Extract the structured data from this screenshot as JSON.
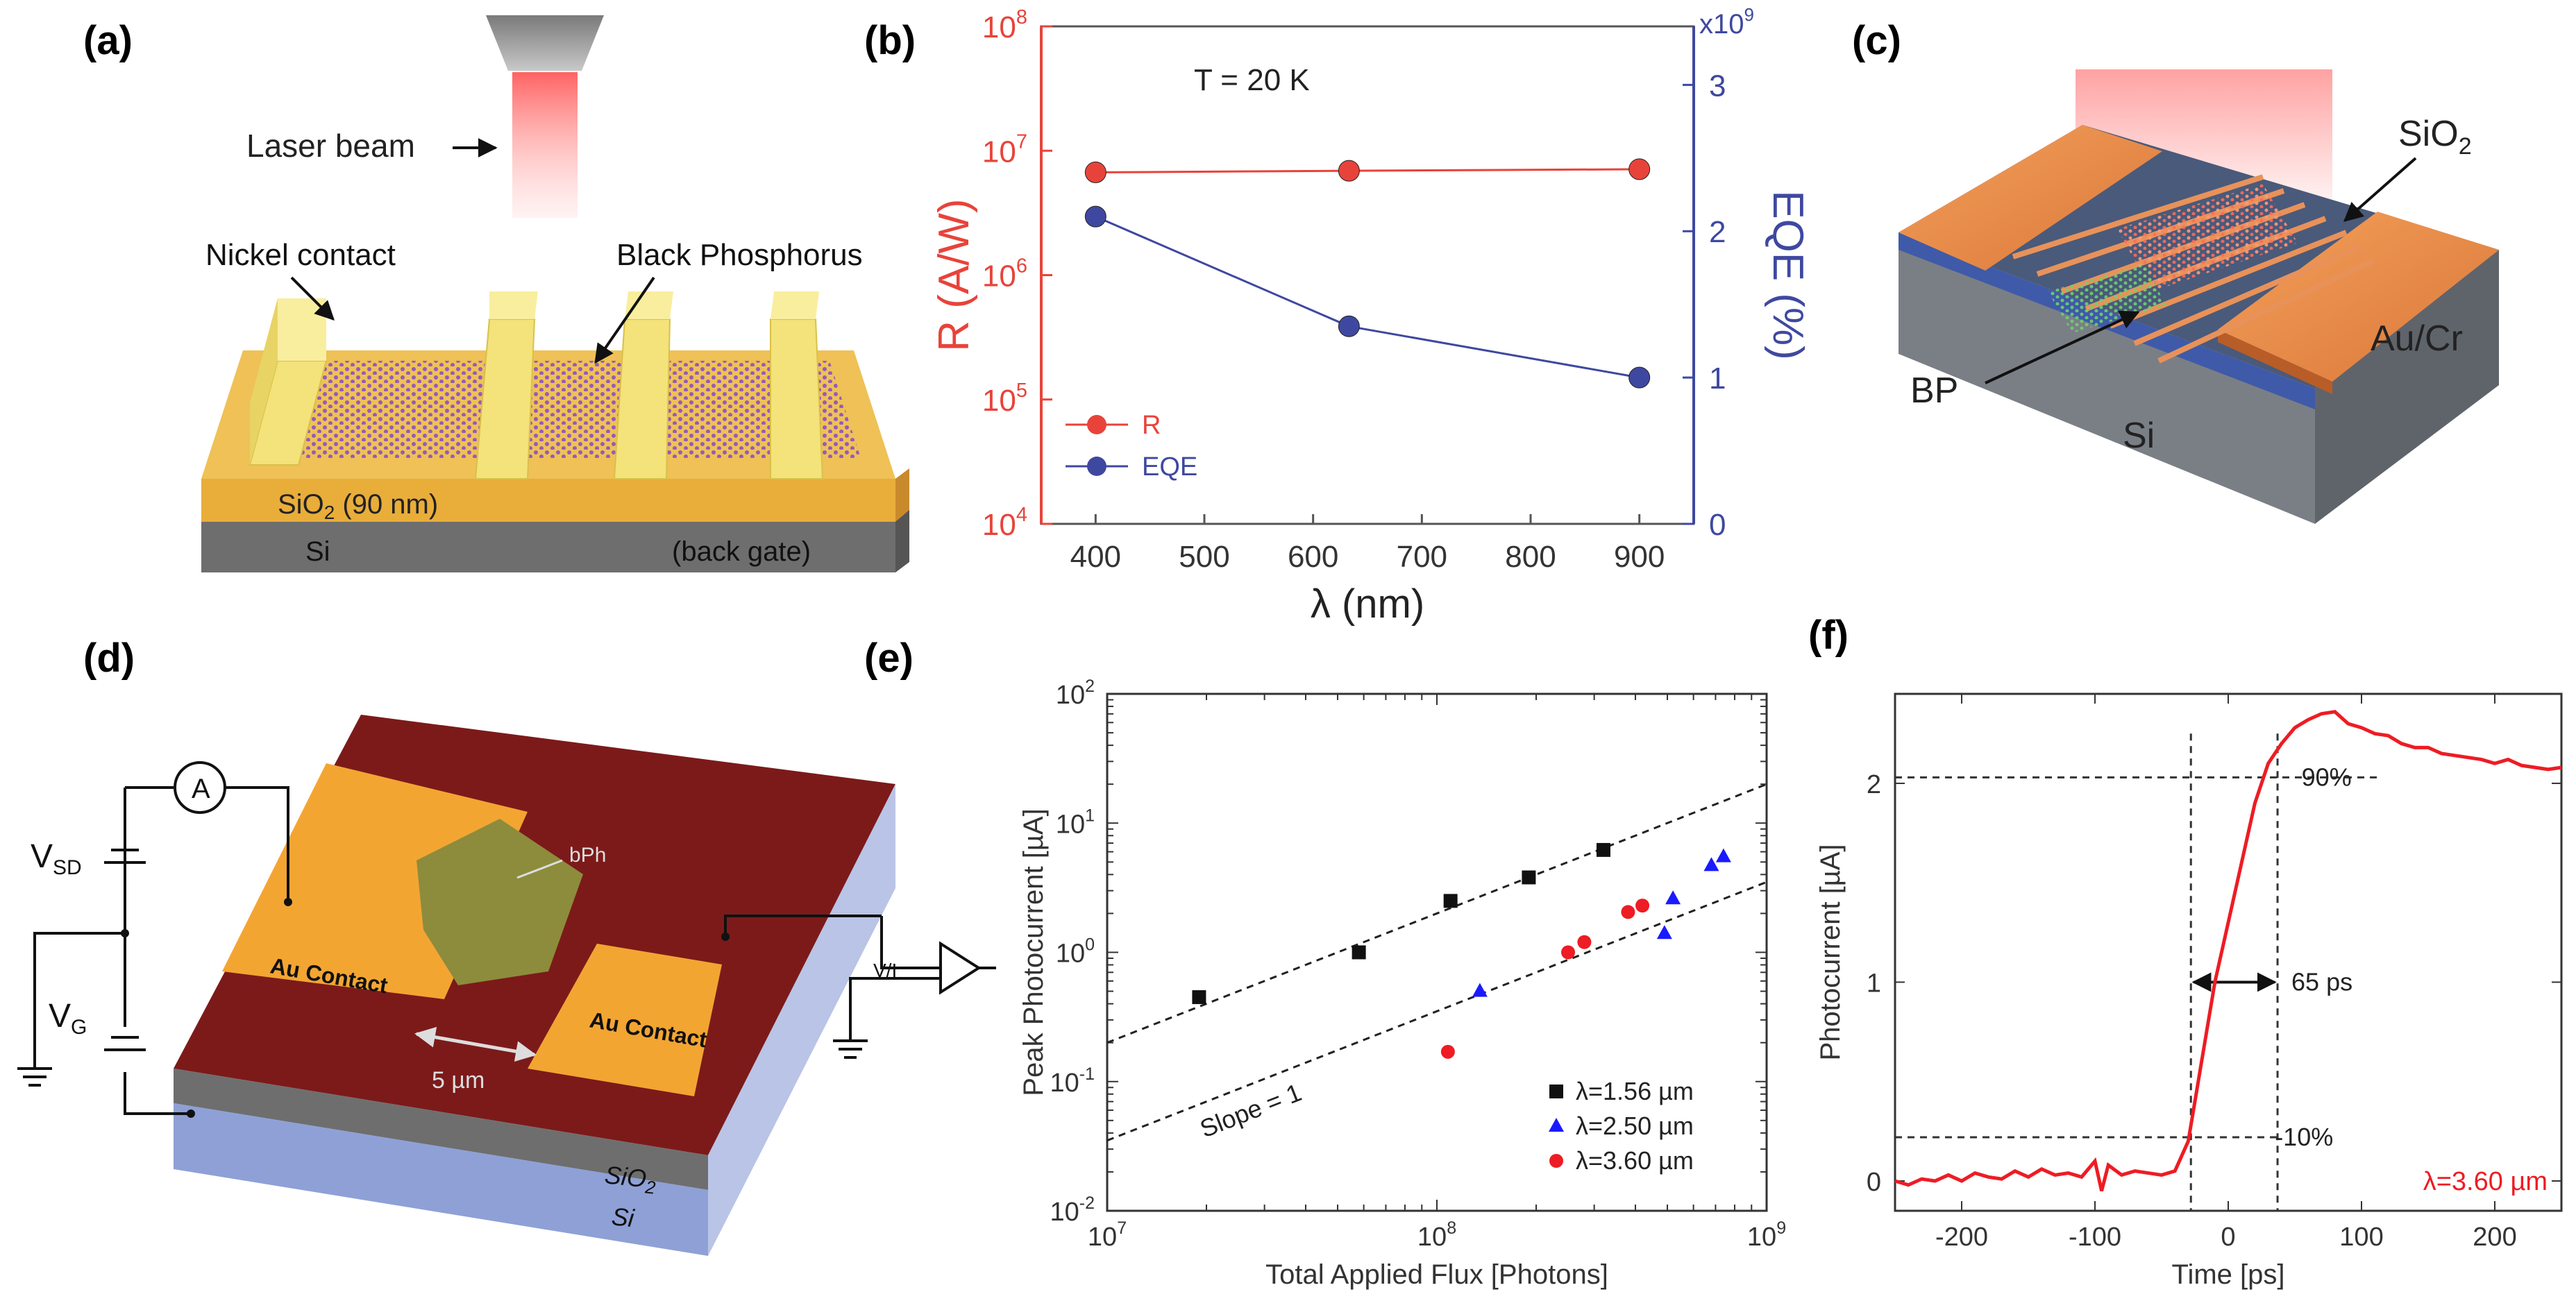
{
  "panels": {
    "a": {
      "label": "(a)",
      "laser": "Laser beam",
      "nickel": "Nickel contact",
      "bp": "Black Phosphorus",
      "sio2": "SiO",
      "sio2_sub": "2",
      "sio2_thick": " (90 nm)",
      "si": "Si",
      "backgate": "(back gate)"
    },
    "c": {
      "label": "(c)",
      "sio2": "SiO",
      "sio2_sub": "2",
      "aucr": "Au/Cr",
      "bp": "BP",
      "si": "Si"
    },
    "d": {
      "label": "(d)",
      "ammeter": "A",
      "vsd": "V",
      "vsd_sub": "SD",
      "vg": "V",
      "vg_sub": "G",
      "bph": "bPh",
      "contact_left": "Au Contact",
      "contact_right": "Au Contact",
      "scale": "5 µm",
      "amp": "V/I",
      "sio2": "SiO",
      "sio2_sub": "2",
      "si": "Si"
    }
  },
  "chart_data": [
    {
      "panel_label": "(b)",
      "type": "line",
      "annotation": "T = 20 K",
      "xlabel": "λ (nm)",
      "ylabel_left": "R (A/W)",
      "ylabel_right": "EQE (%)",
      "right_multiplier": "x10",
      "right_multiplier_exp": "9",
      "xlim": [
        350,
        950
      ],
      "xticks": [
        400,
        500,
        600,
        700,
        800,
        900
      ],
      "ylim_left": [
        10000,
        100000000
      ],
      "yticks_left": [
        {
          "base": "10",
          "exp": "4"
        },
        {
          "base": "10",
          "exp": "5"
        },
        {
          "base": "10",
          "exp": "6"
        },
        {
          "base": "10",
          "exp": "7"
        },
        {
          "base": "10",
          "exp": "8"
        }
      ],
      "ylim_right": [
        0,
        3.4
      ],
      "yticks_right": [
        0,
        1,
        2,
        3
      ],
      "colors": {
        "R": "#e8433a",
        "EQE": "#3f48a0"
      },
      "series": [
        {
          "name": "R",
          "axis": "left",
          "x": [
            400,
            633,
            900
          ],
          "values": [
            6700000,
            6900000,
            7100000
          ]
        },
        {
          "name": "EQE",
          "axis": "right",
          "x": [
            400,
            633,
            900
          ],
          "values": [
            2.1,
            1.35,
            1.0
          ]
        }
      ],
      "legend": [
        "R",
        "EQE"
      ]
    },
    {
      "panel_label": "(e)",
      "type": "scatter",
      "xlabel": "Total Applied Flux [Photons]",
      "ylabel": "Peak Photocurrent [µA]",
      "xlim": [
        10000000,
        1000000000
      ],
      "ylim": [
        0.01,
        100
      ],
      "xticks": [
        {
          "base": "10",
          "exp": "7"
        },
        {
          "base": "10",
          "exp": "8"
        },
        {
          "base": "10",
          "exp": "9"
        }
      ],
      "yticks": [
        {
          "base": "10",
          "exp": "-2"
        },
        {
          "base": "10",
          "exp": "-1"
        },
        {
          "base": "10",
          "exp": "0"
        },
        {
          "base": "10",
          "exp": "1"
        },
        {
          "base": "10",
          "exp": "2"
        }
      ],
      "annotation": "Slope = 1",
      "fit_lines": [
        {
          "a": 2e-08,
          "x_range": [
            10000000,
            1000000000
          ]
        },
        {
          "a": 3.5e-09,
          "x_range": [
            10000000,
            1000000000
          ]
        }
      ],
      "series": [
        {
          "name": "λ=1.56 µm",
          "marker": "square",
          "color": "#111111",
          "x": [
            19000000,
            58000000,
            110000000,
            190000000,
            320000000
          ],
          "values": [
            0.45,
            1.0,
            2.5,
            3.8,
            6.2
          ]
        },
        {
          "name": "λ=2.50 µm",
          "marker": "triangle",
          "color": "#1a1aff",
          "x": [
            135000000,
            490000000,
            520000000,
            680000000,
            740000000
          ],
          "values": [
            0.5,
            1.4,
            2.6,
            4.7,
            5.5
          ]
        },
        {
          "name": "λ=3.60 µm",
          "marker": "circle",
          "color": "#ee1c24",
          "x": [
            108000000,
            250000000,
            280000000,
            380000000,
            420000000
          ],
          "values": [
            0.17,
            1.0,
            1.2,
            2.05,
            2.3
          ]
        }
      ]
    },
    {
      "panel_label": "(f)",
      "type": "line",
      "xlabel": "Time [ps]",
      "ylabel": "Photocurrent [µA]",
      "xlim": [
        -250,
        250
      ],
      "ylim": [
        -0.15,
        2.45
      ],
      "xticks": [
        -200,
        -100,
        0,
        100,
        200
      ],
      "yticks": [
        0,
        1,
        2
      ],
      "annotations": {
        "p90": "90%",
        "p10": "10%",
        "rise": "65 ps",
        "level90": 2.03,
        "level10": 0.22,
        "t10": -28,
        "t90": 37
      },
      "legend": "λ=3.60 µm",
      "color": "#ee1c24",
      "series": [
        {
          "name": "λ=3.60 µm",
          "x": [
            -250,
            -240,
            -230,
            -220,
            -210,
            -200,
            -190,
            -180,
            -170,
            -160,
            -150,
            -140,
            -130,
            -120,
            -110,
            -100,
            -95,
            -90,
            -80,
            -70,
            -60,
            -50,
            -40,
            -30,
            -20,
            -10,
            0,
            10,
            20,
            30,
            40,
            50,
            60,
            70,
            80,
            90,
            100,
            110,
            120,
            130,
            140,
            150,
            160,
            170,
            180,
            190,
            200,
            210,
            220,
            230,
            240,
            250
          ],
          "values": [
            0.0,
            -0.02,
            0.01,
            0.0,
            0.03,
            0.0,
            0.04,
            0.02,
            0.01,
            0.05,
            0.02,
            0.06,
            0.03,
            0.04,
            0.02,
            0.1,
            -0.05,
            0.08,
            0.03,
            0.05,
            0.04,
            0.03,
            0.05,
            0.2,
            0.6,
            1.0,
            1.3,
            1.6,
            1.9,
            2.1,
            2.2,
            2.28,
            2.32,
            2.35,
            2.36,
            2.3,
            2.28,
            2.25,
            2.24,
            2.2,
            2.18,
            2.18,
            2.15,
            2.14,
            2.13,
            2.12,
            2.1,
            2.12,
            2.09,
            2.08,
            2.07,
            2.08
          ]
        }
      ]
    }
  ]
}
